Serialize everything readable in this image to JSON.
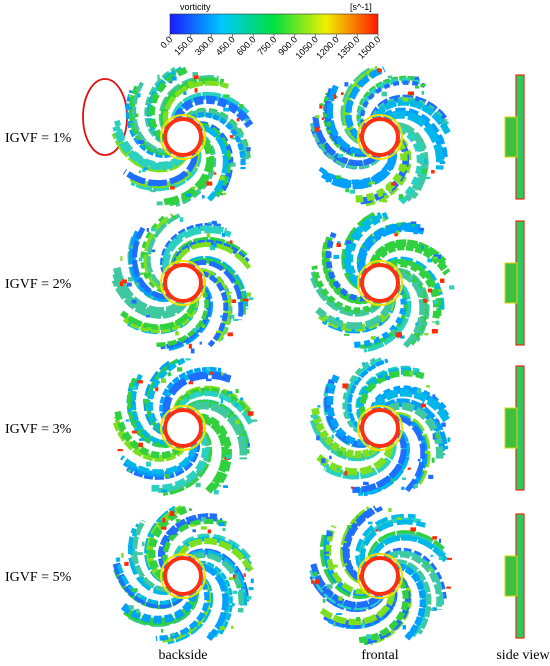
{
  "colorbar": {
    "title": "vorticity",
    "unit": "[s^-1]",
    "min": 0,
    "max": 1500,
    "ticks": [
      {
        "value": 0,
        "label": "0.0"
      },
      {
        "value": 150,
        "label": "150.0"
      },
      {
        "value": 300,
        "label": "300.0"
      },
      {
        "value": 450,
        "label": "450.0"
      },
      {
        "value": 600,
        "label": "600.0"
      },
      {
        "value": 750,
        "label": "750.0"
      },
      {
        "value": 900,
        "label": "900.0"
      },
      {
        "value": 1050,
        "label": "1050.0"
      },
      {
        "value": 1200,
        "label": "1200.0"
      },
      {
        "value": 1350,
        "label": "1350.0"
      },
      {
        "value": 1500,
        "label": "1500.0"
      }
    ]
  },
  "rows": [
    "IGVF = 1%",
    "IGVF = 2%",
    "IGVF = 3%",
    "IGVF = 5%"
  ],
  "columns": [
    "backside",
    "frontal",
    "side view"
  ]
}
